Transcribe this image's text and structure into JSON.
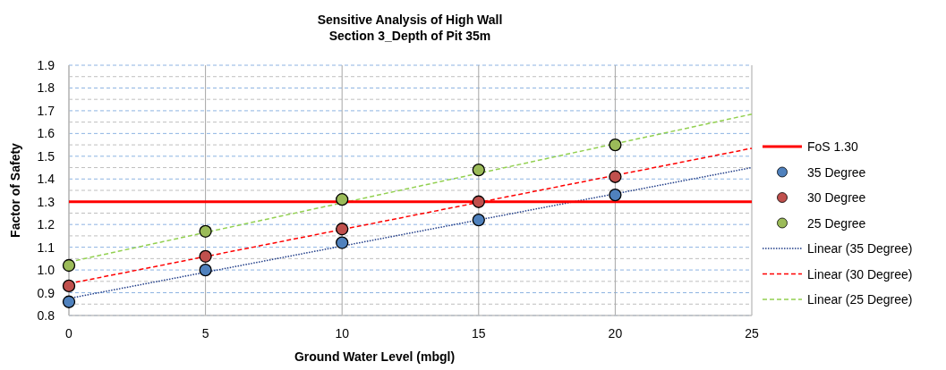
{
  "chart_data": {
    "type": "scatter",
    "title": "Sensitive Analysis of High Wall",
    "subtitle": "Section 3_Depth of Pit 35m",
    "xlabel": "Ground Water Level (mbgl)",
    "ylabel": "Factor of Safety",
    "xlim": [
      0,
      25
    ],
    "xticks": [
      0,
      5,
      10,
      15,
      20,
      25
    ],
    "ylim": [
      0.8,
      1.9
    ],
    "yticks": [
      0.8,
      0.9,
      {
        "value": 1,
        "label": "1.0"
      },
      1.1,
      1.2,
      1.3,
      1.4,
      1.5,
      1.6,
      1.7,
      1.8,
      1.9
    ],
    "grid": true,
    "legend": "right",
    "marker": "circle",
    "ref_lines": [
      {
        "axis": "y",
        "value": 1.3,
        "label": "FoS 1.30",
        "color": "#ff0000"
      }
    ],
    "x": [
      0,
      5,
      10,
      15,
      20
    ],
    "series": [
      {
        "name": "35  Degree",
        "color": "#4f81bd",
        "values": [
          0.86,
          1.0,
          1.12,
          1.22,
          1.33
        ]
      },
      {
        "name": "30 Degree",
        "color": "#c0504d",
        "values": [
          0.93,
          1.06,
          1.18,
          1.3,
          1.41
        ]
      },
      {
        "name": "25 Degree",
        "color": "#9bbb59",
        "values": [
          1.02,
          1.17,
          1.31,
          1.44,
          1.55
        ]
      },
      {
        "name": "Linear (35  Degree)",
        "type": "line",
        "line_style": "dotted",
        "marker": "none",
        "color": "#1f3c88",
        "x": [
          0,
          5,
          10,
          15,
          20,
          25
        ],
        "values": [
          0.875,
          0.99,
          1.105,
          1.22,
          1.335,
          1.45
        ]
      },
      {
        "name": "Linear (30 Degree)",
        "type": "line",
        "line_style": "dashed",
        "marker": "none",
        "color": "#ff0000",
        "x": [
          0,
          5,
          10,
          15,
          20,
          25
        ],
        "values": [
          0.94,
          1.059,
          1.178,
          1.297,
          1.416,
          1.535
        ]
      },
      {
        "name": "Linear (25 Degree)",
        "type": "line",
        "line_style": "dashed",
        "marker": "none",
        "color": "#92d050",
        "x": [
          0,
          5,
          10,
          15,
          20,
          25
        ],
        "values": [
          1.035,
          1.165,
          1.295,
          1.425,
          1.555,
          1.685
        ]
      }
    ]
  }
}
